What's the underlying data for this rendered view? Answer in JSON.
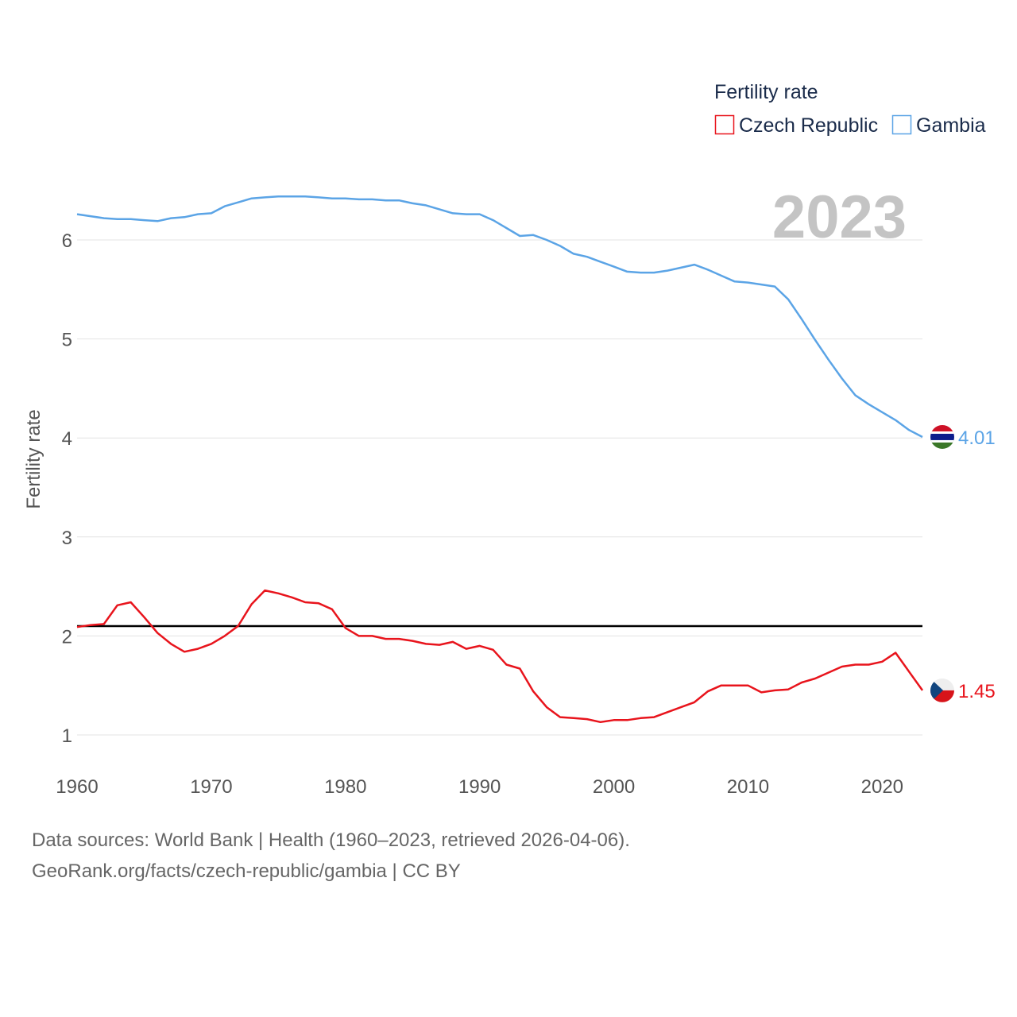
{
  "chart_data": {
    "type": "line",
    "title": "Fertility rate",
    "ylabel": "Fertility rate",
    "xlabel": "",
    "year_label": "2023",
    "xlim": [
      1960,
      2023
    ],
    "ylim": [
      0.9,
      6.8
    ],
    "x_ticks": [
      1960,
      1970,
      1980,
      1990,
      2000,
      2010,
      2020
    ],
    "y_ticks": [
      1,
      2,
      3,
      4,
      5,
      6
    ],
    "reference_line": {
      "value": 2.1,
      "color": "#000000"
    },
    "legend": {
      "title": "Fertility rate",
      "placement": "top-right"
    },
    "x": [
      1960,
      1961,
      1962,
      1963,
      1964,
      1965,
      1966,
      1967,
      1968,
      1969,
      1970,
      1971,
      1972,
      1973,
      1974,
      1975,
      1976,
      1977,
      1978,
      1979,
      1980,
      1981,
      1982,
      1983,
      1984,
      1985,
      1986,
      1987,
      1988,
      1989,
      1990,
      1991,
      1992,
      1993,
      1994,
      1995,
      1996,
      1997,
      1998,
      1999,
      2000,
      2001,
      2002,
      2003,
      2004,
      2005,
      2006,
      2007,
      2008,
      2009,
      2010,
      2011,
      2012,
      2013,
      2014,
      2015,
      2016,
      2017,
      2018,
      2019,
      2020,
      2021,
      2022,
      2023
    ],
    "series": [
      {
        "name": "Czech Republic",
        "color": "#e8141c",
        "end_label": "1.45",
        "values": [
          2.09,
          2.11,
          2.12,
          2.31,
          2.34,
          2.19,
          2.03,
          1.92,
          1.84,
          1.87,
          1.92,
          2.0,
          2.1,
          2.32,
          2.46,
          2.43,
          2.39,
          2.34,
          2.33,
          2.27,
          2.08,
          2.0,
          2.0,
          1.97,
          1.97,
          1.95,
          1.92,
          1.91,
          1.94,
          1.87,
          1.9,
          1.86,
          1.71,
          1.67,
          1.44,
          1.28,
          1.18,
          1.17,
          1.16,
          1.13,
          1.15,
          1.15,
          1.17,
          1.18,
          1.23,
          1.28,
          1.33,
          1.44,
          1.5,
          1.5,
          1.5,
          1.43,
          1.45,
          1.46,
          1.53,
          1.57,
          1.63,
          1.69,
          1.71,
          1.71,
          1.74,
          1.83,
          1.64,
          1.45
        ]
      },
      {
        "name": "Gambia",
        "color": "#5ba4e6",
        "end_label": "4.01",
        "values": [
          6.26,
          6.24,
          6.22,
          6.21,
          6.21,
          6.2,
          6.19,
          6.22,
          6.23,
          6.26,
          6.27,
          6.34,
          6.38,
          6.42,
          6.43,
          6.44,
          6.44,
          6.44,
          6.43,
          6.42,
          6.42,
          6.41,
          6.41,
          6.4,
          6.4,
          6.37,
          6.35,
          6.31,
          6.27,
          6.26,
          6.26,
          6.2,
          6.12,
          6.04,
          6.05,
          6.0,
          5.94,
          5.86,
          5.83,
          5.78,
          5.73,
          5.68,
          5.67,
          5.67,
          5.69,
          5.72,
          5.75,
          5.7,
          5.64,
          5.58,
          5.57,
          5.55,
          5.53,
          5.4,
          5.2,
          4.99,
          4.79,
          4.6,
          4.43,
          4.34,
          4.26,
          4.18,
          4.08,
          4.01
        ]
      }
    ]
  },
  "footer": {
    "line1": "Data sources: World Bank | Health (1960–2023, retrieved 2026-04-06).",
    "line2": "GeoRank.org/facts/czech-republic/gambia | CC BY"
  },
  "flags": {
    "gambia": [
      "#ce1126",
      "#ffffff",
      "#0c1c8c",
      "#3a7728"
    ],
    "czech": [
      "#ffffff",
      "#d7141a",
      "#11457e"
    ]
  }
}
